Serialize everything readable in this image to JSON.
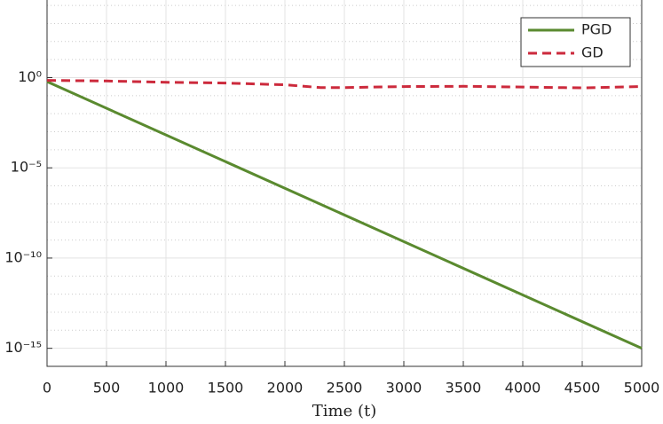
{
  "chart_data": {
    "type": "line",
    "x_label": "Time (t)",
    "x": [
      0,
      500,
      1000,
      1500,
      2000,
      2300,
      2500,
      3000,
      3500,
      4000,
      4500,
      5000
    ],
    "series": [
      {
        "name": "PGD",
        "color": "#5a8a2f",
        "dash": false,
        "x": [
          0,
          5000
        ],
        "values": [
          0.6,
          1e-15
        ]
      },
      {
        "name": "GD",
        "color": "#cc2a3c",
        "dash": true,
        "values": [
          0.7,
          0.65,
          0.55,
          0.5,
          0.4,
          0.28,
          0.28,
          0.32,
          0.33,
          0.3,
          0.27,
          0.32
        ]
      }
    ],
    "xlim": [
      0,
      5000
    ],
    "xticks": [
      0,
      500,
      1000,
      1500,
      2000,
      2500,
      3000,
      3500,
      4000,
      4500,
      5000
    ],
    "ylim": [
      1e-16,
      20000
    ],
    "log_y": true,
    "yticks": [
      {
        "value": 1e-15,
        "label": "10⁻¹⁵"
      },
      {
        "value": 1e-10,
        "label": "10⁻¹⁰"
      },
      {
        "value": 1e-05,
        "label": "10⁻⁵"
      },
      {
        "value": 1,
        "label": "10⁰"
      }
    ],
    "yminorticks": [
      1e-16,
      1e-14,
      1e-13,
      1e-12,
      1e-11,
      1e-09,
      1e-08,
      1e-07,
      1e-06,
      0.0001,
      0.001,
      0.01,
      0.1,
      10,
      100,
      1000,
      10000
    ],
    "grid": true,
    "legend": "upper right"
  }
}
